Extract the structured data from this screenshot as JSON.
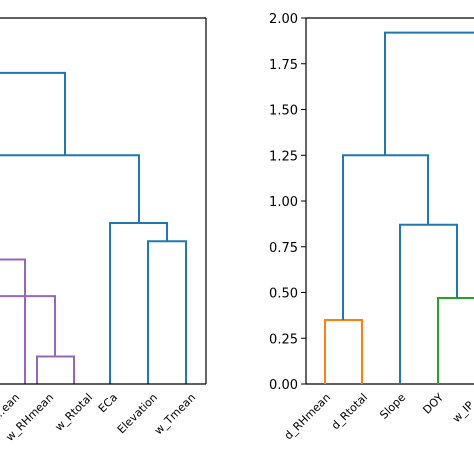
{
  "chart_data": [
    {
      "type": "dendrogram",
      "panel": "left",
      "leaves": [
        "…",
        "…",
        "w_RHmean",
        "w_Rtotal",
        "ECa",
        "Elevation",
        "w_Tmean"
      ],
      "yticks": [],
      "links": [
        {
          "color": "#9467bd",
          "x": [
            "w_RHmean",
            "w_Rtotal"
          ],
          "height": 0.15
        },
        {
          "color": "#9467bd",
          "x": [
            "…",
            "…"
          ],
          "height": 0.68
        },
        {
          "color": "#9467bd",
          "x": [
            "…",
            "cluster"
          ],
          "height": 0.48
        },
        {
          "color": "#1f77b4",
          "x": [
            "Elevation",
            "w_Tmean"
          ],
          "height": 0.78
        },
        {
          "color": "#1f77b4",
          "x": [
            "ECa",
            "cluster"
          ],
          "height": 0.88
        },
        {
          "color": "#1f77b4",
          "x": [
            "cluster",
            "cluster"
          ],
          "height": 1.25
        },
        {
          "color": "#1f77b4",
          "x": [
            "cluster",
            "cluster"
          ],
          "height": 1.7
        }
      ]
    },
    {
      "type": "dendrogram",
      "panel": "right",
      "leaves": [
        "d_RHmean",
        "d_Rtotal",
        "Slope",
        "DOY",
        "w_IP…"
      ],
      "yticks": [
        "0.00",
        "0.25",
        "0.50",
        "0.75",
        "1.00",
        "1.25",
        "1.50",
        "1.75",
        "2.00"
      ],
      "ylim": [
        0,
        2.0
      ],
      "links": [
        {
          "color": "#ff7f0e",
          "x": [
            "d_RHmean",
            "d_Rtotal"
          ],
          "height": 0.35
        },
        {
          "color": "#2ca02c",
          "x": [
            "DOY",
            "w_IP…"
          ],
          "height": 0.47
        },
        {
          "color": "#1f77b4",
          "x": [
            "Slope",
            "cluster"
          ],
          "height": 0.87
        },
        {
          "color": "#1f77b4",
          "x": [
            "cluster",
            "cluster"
          ],
          "height": 1.25
        },
        {
          "color": "#1f77b4",
          "x": [
            "cluster",
            "cluster"
          ],
          "height": 1.92
        }
      ]
    }
  ]
}
